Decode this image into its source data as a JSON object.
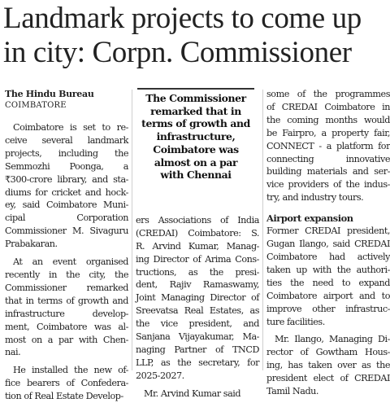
{
  "headline": {
    "line1": "Landmark projects to come up",
    "line2": "in city: Corpn. Commissioner"
  },
  "byline": "The Hindu Bureau",
  "dateline": "COIMBATORE",
  "col1": {
    "p1": [
      "Coimbatore is set to re-",
      "ceive several landmark",
      "projects, including the",
      "Semmozhi Poonga, a",
      "₹300-crore library, and sta-",
      "diums for cricket and hock-",
      "ey, said Coimbatore Muni-",
      "cipal Corporation",
      "Commissioner M. Sivaguru",
      "Prabakaran."
    ],
    "p2": [
      "At an event organised",
      "recently in the city, the",
      "Commissioner remarked",
      "that in terms of growth and",
      "infrastructure develop-",
      "ment, Coimbatore was al-",
      "most on a par with Chen-",
      "nai."
    ],
    "p3": [
      "He installed the new of-",
      "fice bearers of Confedera-",
      "tion of Real Estate Develop-"
    ]
  },
  "pullquote": [
    "The Commissioner",
    "remarked that in",
    "terms of growth and",
    "infrastructure,",
    "Coimbatore was",
    "almost on a par",
    "with Chennai"
  ],
  "col2": {
    "p1": [
      "ers Associations of India",
      "(CREDAI) Coimbatore: S.",
      "R. Arvind Kumar, Manag-",
      "ing Director of Arima Cons-",
      "tructions, as the presi-",
      "dent, Rajiv Ramaswamy,",
      "Joint Managing Director of",
      "Sreevatsa Real Estates, as",
      "the vice president, and",
      "Sanjana Vijayakumar, Ma-",
      "naging Partner of TNCD",
      "LLP, as the secretary, for",
      "2025-2027."
    ],
    "p2": [
      "Mr. Arvind Kumar said"
    ]
  },
  "col3": {
    "p1": [
      "some of the programmes",
      "of CREDAI Coimbatore in",
      "the coming months would",
      "be Fairpro, a property fair,",
      "CONNECT - a platform for",
      "connecting innovative",
      "building materials and ser-",
      "vice providers of the indus-",
      "try, and industry tours."
    ],
    "subhead": "Airport expansion",
    "p2": [
      "Former CREDAI president,",
      "Gugan Ilango, said CREDAI",
      "Coimbatore had actively",
      "taken up with the authori-",
      "ties the need to expand",
      "Coimbatore airport and to",
      "improve other infrastruc-",
      "ture facilities."
    ],
    "p3": [
      "Mr. Ilango, Managing Di-",
      "rector of Gowtham Hous-",
      "ing, has taken over as the",
      "president elect of CREDAI",
      "Tamil Nadu."
    ]
  }
}
